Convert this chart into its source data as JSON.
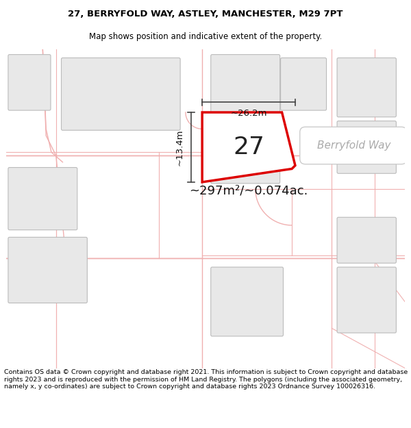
{
  "title_line1": "27, BERRYFOLD WAY, ASTLEY, MANCHESTER, M29 7PT",
  "title_line2": "Map shows position and indicative extent of the property.",
  "footer_text": "Contains OS data © Crown copyright and database right 2021. This information is subject to Crown copyright and database rights 2023 and is reproduced with the permission of HM Land Registry. The polygons (including the associated geometry, namely x, y co-ordinates) are subject to Crown copyright and database rights 2023 Ordnance Survey 100026316.",
  "area_text": "~297m²/~0.074ac.",
  "house_number": "27",
  "dim_width": "~26.2m",
  "dim_height": "~13.4m",
  "street_label": "Berryfold Way",
  "map_bg": "#ffffff",
  "plot_color": "#dd0000",
  "building_fill": "#e8e8e8",
  "building_edge": "#bbbbbb",
  "road_line_color": "#f0b0b0",
  "dim_line_color": "#444444",
  "street_label_color": "#aaaaaa",
  "area_text_color": "#111111",
  "house_num_color": "#222222",
  "title_fontsize": 9.5,
  "subtitle_fontsize": 8.5,
  "footer_fontsize": 6.8
}
